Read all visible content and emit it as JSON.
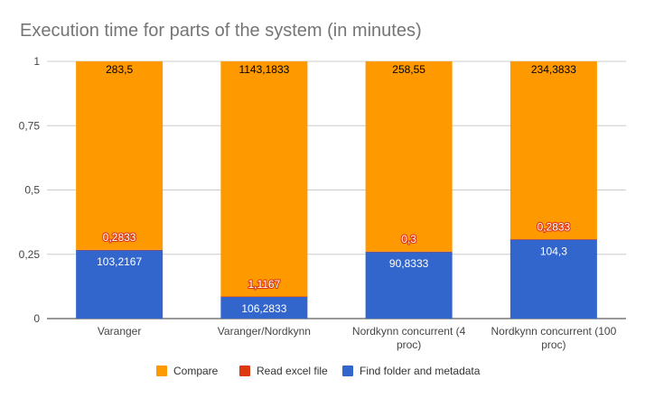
{
  "chart_data": {
    "type": "bar",
    "stacked": "percent",
    "title": "Execution time for parts of the system (in minutes)",
    "xlabel": "",
    "ylabel": "",
    "ylim": [
      0,
      1
    ],
    "yticks": [
      "0",
      "0,25",
      "0,5",
      "0,75",
      "1"
    ],
    "grid": true,
    "legend_position": "bottom",
    "categories": [
      [
        "Varanger"
      ],
      [
        "Varanger/Nordkynn"
      ],
      [
        "Nordkynn concurrent (4",
        "proc)"
      ],
      [
        "Nordkynn concurrent (100",
        "proc)"
      ]
    ],
    "series": [
      {
        "name": "Find folder and metadata",
        "color": "#3366cc",
        "values": [
          103.2167,
          106.2833,
          90.8333,
          104.3
        ],
        "labels": [
          "103,2167",
          "106,2833",
          "90,8333",
          "104,3"
        ]
      },
      {
        "name": "Read excel file",
        "color": "#dc3912",
        "values": [
          0.2833,
          1.1167,
          0.3,
          0.2833
        ],
        "labels": [
          "0,2833",
          "1,1167",
          "0,3",
          "0,2833"
        ]
      },
      {
        "name": "Compare",
        "color": "#ff9900",
        "values": [
          283.5,
          1143.1833,
          258.55,
          234.3833
        ],
        "labels": [
          "283,5",
          "1143,1833",
          "258,55",
          "234,3833"
        ]
      }
    ],
    "legend_order": [
      "Compare",
      "Read excel file",
      "Find folder and metadata"
    ]
  }
}
